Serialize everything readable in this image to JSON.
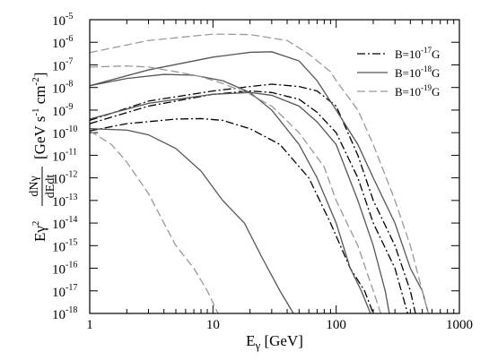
{
  "chart_data": {
    "type": "line",
    "xlabel": {
      "main": "E",
      "sub": "γ",
      "rest": " [GeV]"
    },
    "ylabel": {
      "prefix": "Eγ",
      "sup": "2",
      "num": "dNγ",
      "den": "dEdt",
      "unit": "[GeV s",
      "unit_sup1": "-1",
      "unit_cm": " cm",
      "unit_sup2": "-2",
      "unit_end": "]"
    },
    "x_scale": "log",
    "y_scale": "log",
    "xlim": [
      1,
      1000
    ],
    "ylim": [
      1e-18,
      1e-05
    ],
    "x_ticks": [
      {
        "value": 1,
        "label": "1"
      },
      {
        "value": 10,
        "label": "10"
      },
      {
        "value": 100,
        "label": "100"
      },
      {
        "value": 1000,
        "label": "1000"
      }
    ],
    "y_ticks": [
      {
        "value": 1e-05,
        "base": "10",
        "exp": "-5"
      },
      {
        "value": 1e-06,
        "base": "10",
        "exp": "-6"
      },
      {
        "value": 1e-07,
        "base": "10",
        "exp": "-7"
      },
      {
        "value": 1e-08,
        "base": "10",
        "exp": "-8"
      },
      {
        "value": 1e-09,
        "base": "10",
        "exp": "-9"
      },
      {
        "value": 1e-10,
        "base": "10",
        "exp": "-10"
      },
      {
        "value": 1e-11,
        "base": "10",
        "exp": "-11"
      },
      {
        "value": 1e-12,
        "base": "10",
        "exp": "-12"
      },
      {
        "value": 1e-13,
        "base": "10",
        "exp": "-13"
      },
      {
        "value": 1e-14,
        "base": "10",
        "exp": "-14"
      },
      {
        "value": 1e-15,
        "base": "10",
        "exp": "-15"
      },
      {
        "value": 1e-16,
        "base": "10",
        "exp": "-16"
      },
      {
        "value": 1e-17,
        "base": "10",
        "exp": "-17"
      },
      {
        "value": 1e-18,
        "base": "10",
        "exp": "-18"
      }
    ],
    "legend_position": "top-right",
    "legend": [
      {
        "label_main": "B=10",
        "label_sup": "-17",
        "label_end": "G",
        "style": "dashdot",
        "color": "#000000"
      },
      {
        "label_main": "B=10",
        "label_sup": "-18",
        "label_end": "G",
        "style": "solid",
        "color": "#555555"
      },
      {
        "label_main": "B=10",
        "label_sup": "-19",
        "label_end": "G",
        "style": "dashed",
        "color": "#999999"
      }
    ],
    "series": [
      {
        "style": "dashdot",
        "color": "#000000",
        "points": [
          [
            1,
            3.5e-10
          ],
          [
            3,
            2.5e-09
          ],
          [
            10,
            7e-09
          ],
          [
            20,
            1.1e-08
          ],
          [
            30,
            1.4e-08
          ],
          [
            50,
            1.1e-08
          ],
          [
            70,
            7e-09
          ],
          [
            100,
            1.5e-09
          ],
          [
            150,
            1e-11
          ],
          [
            200,
            1e-13
          ],
          [
            300,
            1e-15
          ],
          [
            400,
            1e-17
          ],
          [
            440,
            1e-18
          ]
        ]
      },
      {
        "style": "dashdot",
        "color": "#000000",
        "points": [
          [
            1,
            2.5e-10
          ],
          [
            3,
            1.5e-09
          ],
          [
            10,
            5e-09
          ],
          [
            20,
            7e-09
          ],
          [
            30,
            6e-09
          ],
          [
            50,
            3e-09
          ],
          [
            70,
            8e-10
          ],
          [
            100,
            1e-10
          ],
          [
            150,
            1e-12
          ],
          [
            200,
            1e-14
          ],
          [
            300,
            1e-16
          ],
          [
            380,
            1e-18
          ]
        ]
      },
      {
        "style": "dashdot",
        "color": "#000000",
        "points": [
          [
            1,
            1.2e-10
          ],
          [
            2,
            2.5e-10
          ],
          [
            5,
            4e-10
          ],
          [
            8,
            4.2e-10
          ],
          [
            12,
            3.5e-10
          ],
          [
            20,
            1.5e-10
          ],
          [
            35,
            3e-11
          ],
          [
            60,
            1e-12
          ],
          [
            90,
            1e-14
          ],
          [
            130,
            1e-16
          ],
          [
            170,
            1e-17
          ],
          [
            200,
            1e-18
          ]
        ]
      },
      {
        "style": "solid",
        "color": "#555555",
        "points": [
          [
            1,
            1.2e-08
          ],
          [
            3,
            6e-08
          ],
          [
            10,
            2.2e-07
          ],
          [
            20,
            3.6e-07
          ],
          [
            30,
            3.8e-07
          ],
          [
            50,
            1.5e-07
          ],
          [
            70,
            2e-08
          ],
          [
            100,
            1e-09
          ],
          [
            150,
            3e-11
          ],
          [
            200,
            1e-12
          ],
          [
            300,
            1e-14
          ],
          [
            400,
            1e-16
          ],
          [
            500,
            1e-17
          ],
          [
            560,
            1e-18
          ]
        ]
      },
      {
        "style": "solid",
        "color": "#555555",
        "points": [
          [
            1,
            4e-10
          ],
          [
            3,
            2e-09
          ],
          [
            10,
            5e-09
          ],
          [
            20,
            6e-09
          ],
          [
            30,
            4.5e-09
          ],
          [
            50,
            1.5e-09
          ],
          [
            70,
            3e-10
          ],
          [
            100,
            3e-11
          ],
          [
            150,
            1e-13
          ],
          [
            200,
            1e-15
          ],
          [
            250,
            1e-17
          ],
          [
            270,
            1e-18
          ]
        ]
      },
      {
        "style": "solid",
        "color": "#555555",
        "points": [
          [
            1,
            1.5e-10
          ],
          [
            2,
            1.3e-10
          ],
          [
            3,
            8e-11
          ],
          [
            5,
            2e-11
          ],
          [
            8,
            2e-12
          ],
          [
            12,
            1e-13
          ],
          [
            18,
            1e-14
          ],
          [
            25,
            3e-16
          ],
          [
            35,
            1e-17
          ],
          [
            45,
            1e-18
          ]
        ]
      },
      {
        "style": "solid",
        "color": "#555555",
        "points": [
          [
            1,
            1.2e-08
          ],
          [
            2,
            2.5e-08
          ],
          [
            4,
            3.8e-08
          ],
          [
            7,
            3.5e-08
          ],
          [
            12,
            2e-08
          ],
          [
            20,
            6e-09
          ],
          [
            30,
            1e-09
          ],
          [
            50,
            3e-11
          ],
          [
            70,
            1e-12
          ],
          [
            100,
            1e-14
          ],
          [
            130,
            1e-16
          ],
          [
            160,
            1e-17
          ],
          [
            190,
            1e-18
          ]
        ]
      },
      {
        "style": "dashed",
        "color": "#999999",
        "points": [
          [
            1,
            3.5e-07
          ],
          [
            3,
            1.2e-06
          ],
          [
            10,
            2.3e-06
          ],
          [
            20,
            2.2e-06
          ],
          [
            40,
            1.2e-06
          ],
          [
            60,
            3e-07
          ],
          [
            90,
            5e-08
          ],
          [
            100,
            2e-08
          ],
          [
            150,
            1e-09
          ],
          [
            200,
            3e-11
          ],
          [
            300,
            1e-13
          ],
          [
            400,
            1e-15
          ],
          [
            500,
            1e-17
          ],
          [
            560,
            1e-18
          ]
        ]
      },
      {
        "style": "dashed",
        "color": "#999999",
        "points": [
          [
            1,
            8e-08
          ],
          [
            2,
            9e-08
          ],
          [
            3,
            8e-08
          ],
          [
            5,
            5e-08
          ],
          [
            8,
            3e-08
          ],
          [
            12,
            1.5e-08
          ],
          [
            20,
            5e-09
          ],
          [
            30,
            1.5e-09
          ],
          [
            50,
            1e-10
          ],
          [
            80,
            3e-12
          ],
          [
            100,
            1e-13
          ],
          [
            150,
            1e-15
          ],
          [
            200,
            1e-17
          ],
          [
            230,
            1e-18
          ]
        ]
      },
      {
        "style": "dashed",
        "color": "#999999",
        "points": [
          [
            1,
            1.2e-10
          ],
          [
            1.5,
            3e-11
          ],
          [
            2,
            5e-12
          ],
          [
            3,
            2e-13
          ],
          [
            4,
            1e-14
          ],
          [
            5,
            1e-15
          ],
          [
            7,
            1e-16
          ],
          [
            9,
            1e-17
          ],
          [
            11,
            1e-18
          ]
        ]
      }
    ]
  }
}
